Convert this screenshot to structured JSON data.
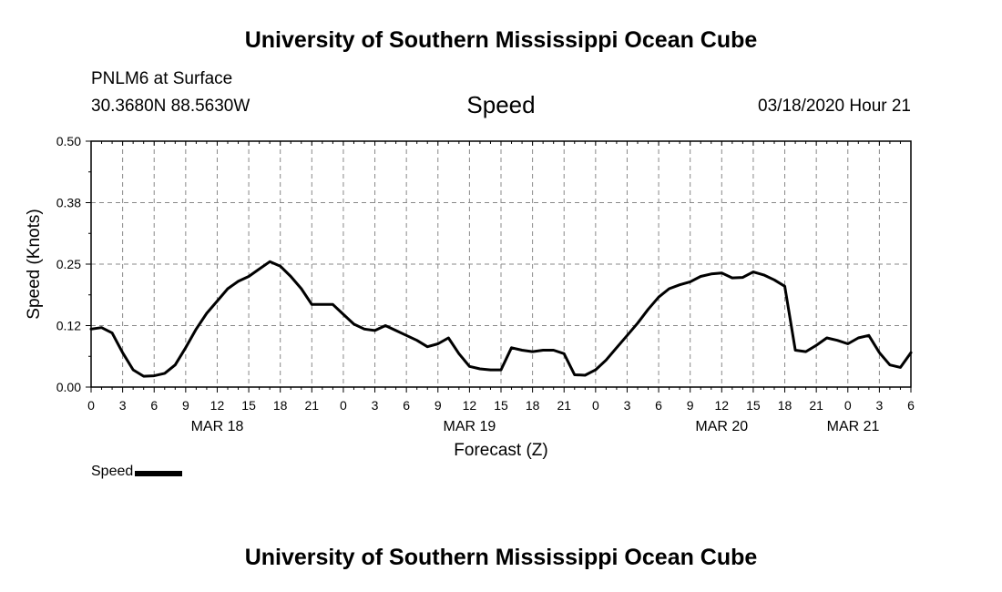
{
  "header": {
    "title": "University of Southern Mississippi Ocean Cube",
    "station": "PNLM6 at Surface",
    "coordinates": "30.3680N 88.5630W",
    "date": "03/18/2020 Hour 21"
  },
  "footer": {
    "title": "University of Southern Mississippi Ocean Cube"
  },
  "legend": {
    "label": "Speed",
    "color": "#000000"
  },
  "chart_data": {
    "type": "line",
    "title": "Speed",
    "xlabel": "Forecast (Z)",
    "ylabel": "Speed (Knots)",
    "ylim": [
      0,
      0.5
    ],
    "xlim": [
      0,
      78
    ],
    "grid": true,
    "y_ticks": [
      0.0,
      0.125,
      0.25,
      0.375,
      0.5
    ],
    "y_tick_labels": [
      "0.00",
      "0.12",
      "0.25",
      "0.38",
      "0.50"
    ],
    "x_ticks": [
      0,
      3,
      6,
      9,
      12,
      15,
      18,
      21,
      24,
      27,
      30,
      33,
      36,
      39,
      42,
      45,
      48,
      51,
      54,
      57,
      60,
      63,
      66,
      69,
      72,
      75,
      78
    ],
    "x_tick_labels": [
      "0",
      "3",
      "6",
      "9",
      "12",
      "15",
      "18",
      "21",
      "0",
      "3",
      "6",
      "9",
      "12",
      "15",
      "18",
      "21",
      "0",
      "3",
      "6",
      "9",
      "12",
      "15",
      "18",
      "21",
      "0",
      "3",
      "6"
    ],
    "date_labels": [
      {
        "text": "MAR 18",
        "x": 12
      },
      {
        "text": "MAR 19",
        "x": 36
      },
      {
        "text": "MAR 20",
        "x": 60
      },
      {
        "text": "MAR 21",
        "x": 72.5
      }
    ],
    "series": [
      {
        "name": "Speed",
        "color": "#000000",
        "x": [
          0,
          1,
          2,
          3,
          4,
          5,
          6,
          7,
          8,
          9,
          10,
          11,
          12,
          13,
          14,
          15,
          16,
          17,
          18,
          19,
          20,
          21,
          22,
          23,
          24,
          25,
          26,
          27,
          28,
          29,
          30,
          31,
          32,
          33,
          34,
          35,
          36,
          37,
          38,
          39,
          40,
          41,
          42,
          43,
          44,
          45,
          46,
          47,
          48,
          49,
          50,
          51,
          52,
          53,
          54,
          55,
          56,
          57,
          58,
          59,
          60,
          61,
          62,
          63,
          64,
          65,
          66,
          67,
          68,
          69,
          70,
          71,
          72,
          73,
          74,
          75,
          76,
          77,
          78
        ],
        "values": [
          0.118,
          0.121,
          0.11,
          0.07,
          0.035,
          0.022,
          0.023,
          0.028,
          0.045,
          0.08,
          0.118,
          0.15,
          0.175,
          0.2,
          0.215,
          0.225,
          0.24,
          0.255,
          0.246,
          0.225,
          0.2,
          0.168,
          0.168,
          0.168,
          0.148,
          0.128,
          0.118,
          0.115,
          0.125,
          0.115,
          0.105,
          0.095,
          0.082,
          0.088,
          0.1,
          0.068,
          0.042,
          0.037,
          0.035,
          0.035,
          0.08,
          0.075,
          0.072,
          0.075,
          0.075,
          0.068,
          0.025,
          0.024,
          0.035,
          0.055,
          0.08,
          0.105,
          0.13,
          0.158,
          0.183,
          0.2,
          0.208,
          0.214,
          0.225,
          0.23,
          0.232,
          0.222,
          0.223,
          0.234,
          0.228,
          0.218,
          0.205,
          0.075,
          0.072,
          0.085,
          0.1,
          0.095,
          0.088,
          0.1,
          0.105,
          0.07,
          0.045,
          0.04,
          0.07
        ]
      }
    ]
  }
}
